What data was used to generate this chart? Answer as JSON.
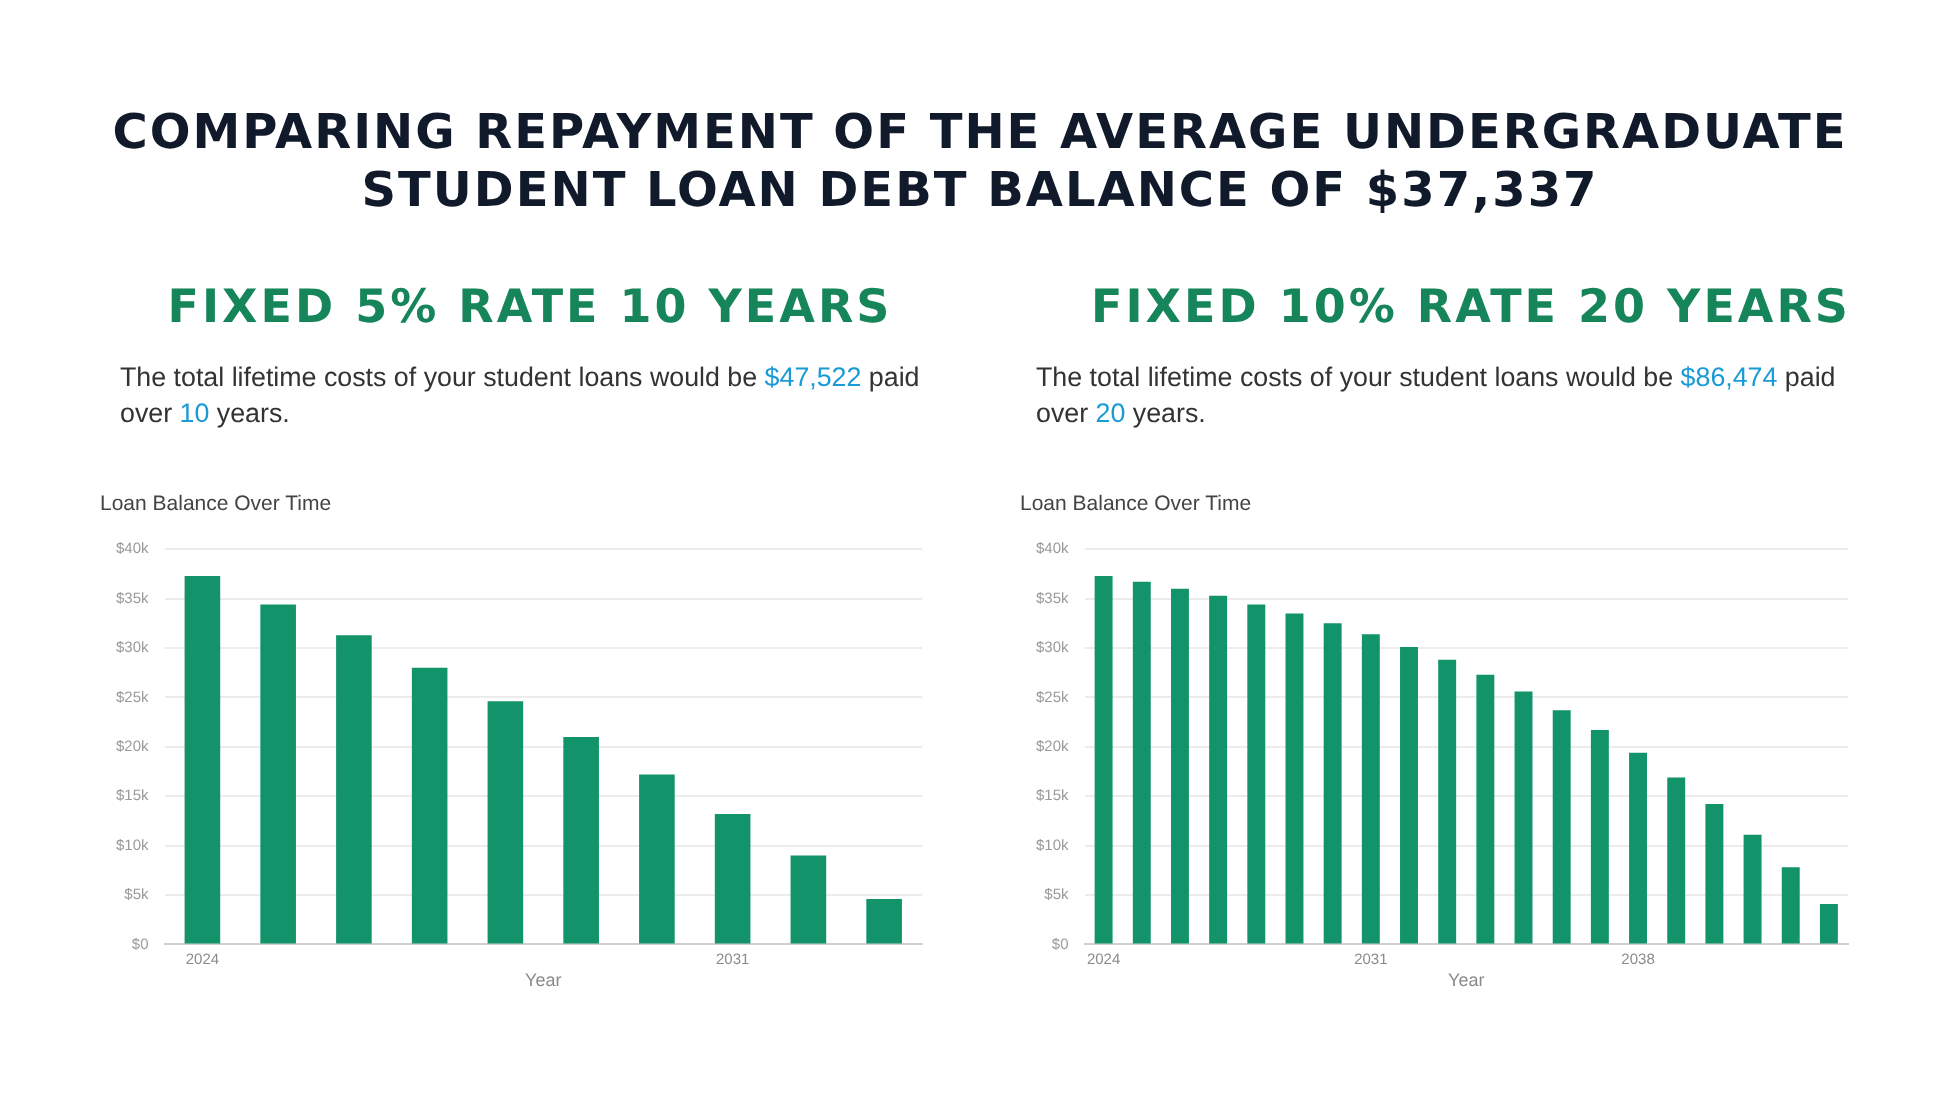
{
  "chart_data": [
    {
      "type": "other",
      "title": "COMPARING REPAYMENT OF THE AVERAGE UNDERGRADUATE STUDENT LOAN DEBT BALANCE OF $37,337"
    },
    {
      "type": "bar",
      "title": "FIXED 5% RATE 10 YEARS",
      "subtitle": "The total lifetime costs of your student loans would be $47,522 paid over 10 years.",
      "annotations": [
        "Loan Balance Over Time"
      ],
      "xlabel": "Year",
      "categories": [
        "2024",
        null,
        null,
        null,
        null,
        null,
        null,
        "2031",
        null,
        null
      ],
      "values": [
        37300,
        34400,
        31300,
        28000,
        24600,
        21000,
        17200,
        13200,
        9000,
        4600
      ],
      "color": "#12936a",
      "ylim": [
        0,
        40000
      ],
      "yticks": [
        {
          "value": 0,
          "label": "$0"
        },
        {
          "value": 5000,
          "label": "$5k"
        },
        {
          "value": 10000,
          "label": "$10k"
        },
        {
          "value": 15000,
          "label": "$15k"
        },
        {
          "value": 20000,
          "label": "$20k"
        },
        {
          "value": 25000,
          "label": "$25k"
        },
        {
          "value": 30000,
          "label": "$30k"
        },
        {
          "value": 35000,
          "label": "$35k"
        },
        {
          "value": 40000,
          "label": "$40k"
        }
      ],
      "grid": "y"
    },
    {
      "type": "bar",
      "title": "FIXED 10% RATE 20 YEARS",
      "subtitle": "The total lifetime costs of your student loans would be $86,474 paid over 20 years.",
      "annotations": [
        "Loan Balance Over Time"
      ],
      "xlabel": "Year",
      "categories": [
        "2024",
        null,
        null,
        null,
        null,
        null,
        null,
        "2031",
        null,
        null,
        null,
        null,
        null,
        null,
        "2038",
        null,
        null,
        null,
        null,
        null
      ],
      "values": [
        37300,
        36700,
        36000,
        35300,
        34400,
        33500,
        32500,
        31400,
        30100,
        28800,
        27300,
        25600,
        23700,
        21700,
        19400,
        16900,
        14200,
        11100,
        7800,
        4100
      ],
      "color": "#12936a",
      "ylim": [
        0,
        40000
      ],
      "yticks": [
        {
          "value": 0,
          "label": "$0"
        },
        {
          "value": 5000,
          "label": "$5k"
        },
        {
          "value": 10000,
          "label": "$10k"
        },
        {
          "value": 15000,
          "label": "$15k"
        },
        {
          "value": 20000,
          "label": "$20k"
        },
        {
          "value": 25000,
          "label": "$25k"
        },
        {
          "value": 30000,
          "label": "$30k"
        },
        {
          "value": 35000,
          "label": "$35k"
        },
        {
          "value": 40000,
          "label": "$40k"
        }
      ],
      "grid": "y"
    }
  ]
}
